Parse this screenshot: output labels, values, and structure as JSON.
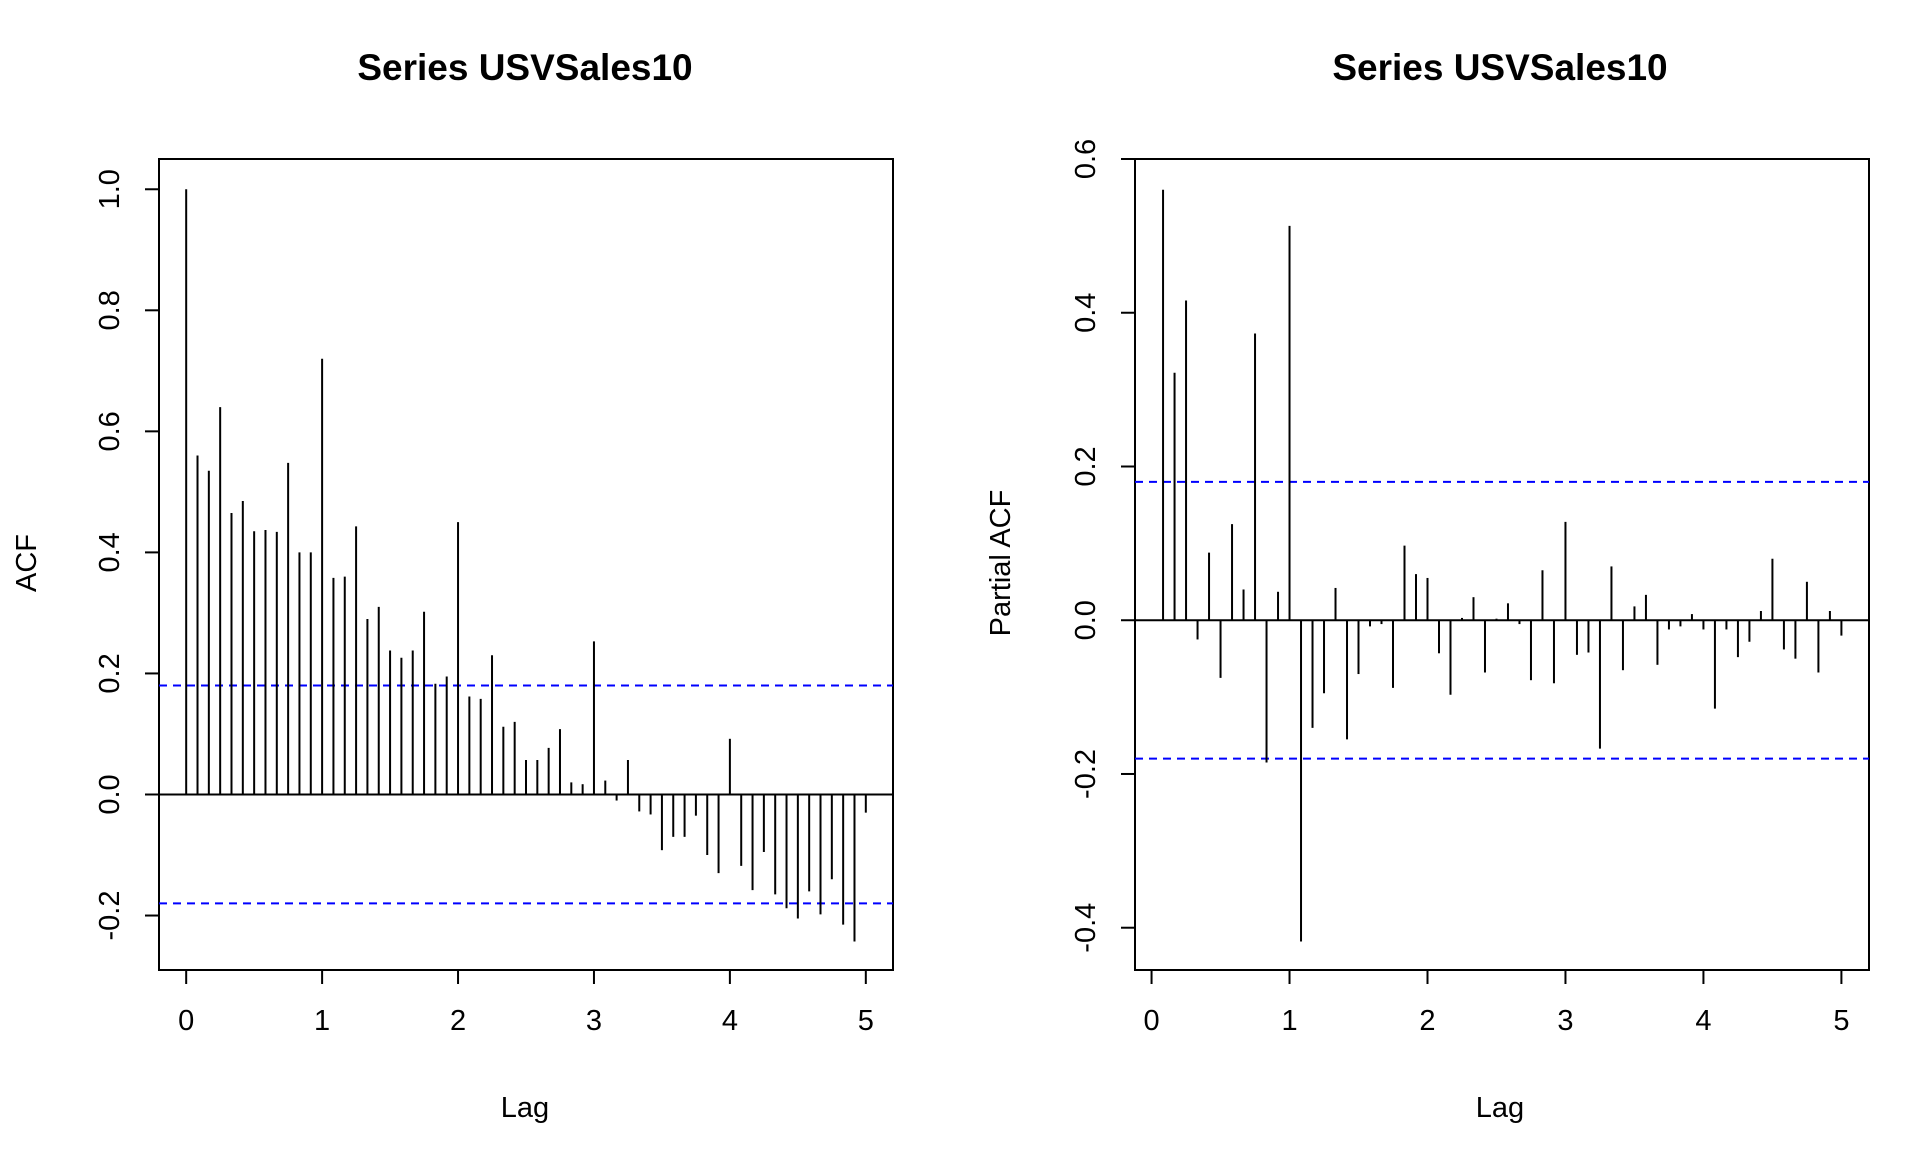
{
  "chart_data": [
    {
      "type": "bar",
      "title": "Series  USVSales10",
      "xlabel": "Lag",
      "ylabel": "ACF",
      "xlim": [
        -0.2,
        5.2
      ],
      "ylim": [
        -0.29,
        1.05
      ],
      "xticks": [
        "0",
        "1",
        "2",
        "3",
        "4",
        "5"
      ],
      "yticks": [
        "-0.2",
        "0.0",
        "0.2",
        "0.4",
        "0.6",
        "0.8",
        "1.0"
      ],
      "confidence_band": 0.18,
      "band_color": "#0000ff",
      "lag_step": 0.0833333,
      "lags_start": 0,
      "values": [
        1.0,
        0.56,
        0.535,
        0.64,
        0.465,
        0.485,
        0.435,
        0.437,
        0.434,
        0.548,
        0.4,
        0.4,
        0.72,
        0.358,
        0.36,
        0.443,
        0.29,
        0.31,
        0.238,
        0.226,
        0.238,
        0.302,
        0.183,
        0.195,
        0.45,
        0.162,
        0.158,
        0.23,
        0.112,
        0.12,
        0.057,
        0.057,
        0.077,
        0.108,
        0.02,
        0.017,
        0.253,
        0.023,
        -0.01,
        0.057,
        -0.028,
        -0.033,
        -0.092,
        -0.07,
        -0.07,
        -0.035,
        -0.1,
        -0.13,
        0.092,
        -0.118,
        -0.158,
        -0.095,
        -0.165,
        -0.188,
        -0.205,
        -0.16,
        -0.198,
        -0.14,
        -0.215,
        -0.243,
        -0.03
      ]
    },
    {
      "type": "bar",
      "title": "Series  USVSales10",
      "xlabel": "Lag",
      "ylabel": "Partial ACF",
      "xlim": [
        -0.12,
        5.2
      ],
      "ylim": [
        -0.455,
        0.6
      ],
      "xticks": [
        "0",
        "1",
        "2",
        "3",
        "4",
        "5"
      ],
      "yticks": [
        "-0.4",
        "-0.2",
        "0.0",
        "0.2",
        "0.4",
        "0.6"
      ],
      "confidence_band": 0.18,
      "band_color": "#0000ff",
      "lag_step": 0.0833333,
      "lags_start": 1,
      "values": [
        0.56,
        0.322,
        0.416,
        -0.025,
        0.088,
        -0.075,
        0.125,
        0.04,
        0.373,
        -0.185,
        0.037,
        0.513,
        -0.418,
        -0.14,
        -0.095,
        0.042,
        -0.155,
        -0.07,
        -0.008,
        -0.005,
        -0.088,
        0.097,
        0.06,
        0.055,
        -0.043,
        -0.097,
        0.003,
        0.03,
        -0.068,
        0.002,
        0.022,
        -0.005,
        -0.078,
        0.065,
        -0.082,
        0.128,
        -0.045,
        -0.042,
        -0.167,
        0.07,
        -0.065,
        0.018,
        0.033,
        -0.058,
        -0.012,
        -0.008,
        0.008,
        -0.012,
        -0.115,
        -0.012,
        -0.048,
        -0.028,
        0.012,
        0.08,
        -0.038,
        -0.05,
        0.05,
        -0.068,
        0.012,
        -0.02
      ]
    }
  ]
}
